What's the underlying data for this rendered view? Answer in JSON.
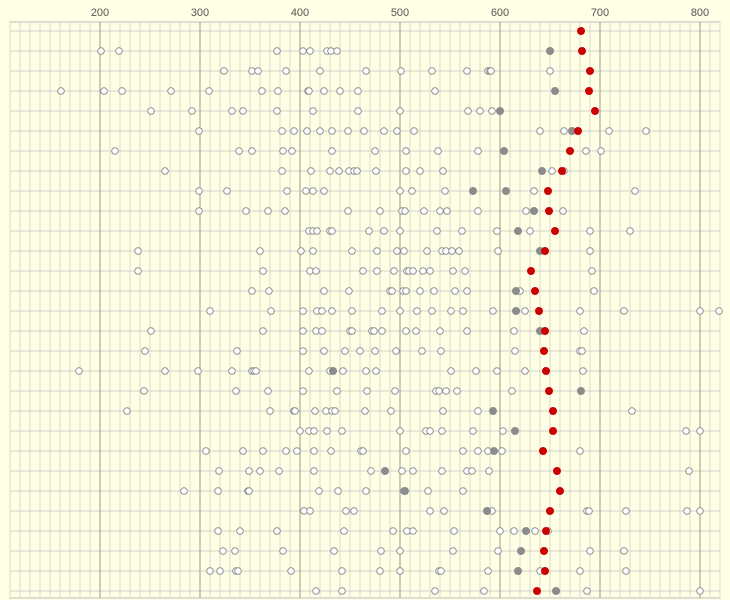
{
  "chart_data": {
    "type": "dot",
    "orientation": "horizontal",
    "xlim": [
      110,
      820
    ],
    "xticks": [
      200,
      300,
      400,
      500,
      600,
      700,
      800
    ],
    "grid": true,
    "minor_grid_step": 10,
    "categories": [
      null,
      null,
      null,
      null,
      null,
      null,
      null,
      null,
      null,
      null,
      null,
      null,
      null,
      null,
      null,
      null,
      null,
      null,
      null,
      null,
      null,
      null,
      null,
      null,
      null,
      null,
      null,
      null,
      null
    ],
    "series": [
      {
        "marker": "open",
        "color": "#888888",
        "values": [
          [],
          [
            201,
            219,
            377,
            403,
            410,
            427,
            431,
            437
          ],
          [
            324,
            352,
            358,
            386,
            420,
            466,
            501,
            532,
            567,
            588,
            590,
            591,
            650
          ],
          [
            161,
            204,
            222,
            271,
            309,
            362,
            378,
            408,
            409,
            424,
            440,
            458,
            535
          ],
          [
            251,
            292,
            332,
            343,
            377,
            413,
            458,
            500,
            568,
            580,
            592
          ],
          [
            299,
            382,
            394,
            407,
            420,
            432,
            448,
            464,
            484,
            497,
            514,
            640,
            664,
            709,
            746
          ],
          [
            215,
            339,
            352,
            383,
            392,
            432,
            475,
            506,
            538,
            578,
            686,
            701
          ],
          [
            265,
            382,
            411,
            430,
            439,
            449,
            454,
            457,
            476,
            506,
            520,
            543,
            652,
            664
          ],
          [
            299,
            327,
            387,
            406,
            413,
            424,
            500,
            512,
            545,
            606,
            634,
            735
          ],
          [
            299,
            346,
            368,
            385,
            448,
            480,
            502,
            505,
            524,
            540,
            547,
            578,
            626,
            663
          ],
          [
            409,
            413,
            417,
            430,
            432,
            469,
            484,
            500,
            537,
            562,
            597,
            630,
            690,
            730
          ],
          [
            238,
            360,
            401,
            413,
            452,
            477,
            497,
            504,
            527,
            542,
            546,
            552,
            559,
            598,
            690
          ],
          [
            238,
            363,
            410,
            416,
            463,
            477,
            494,
            507,
            509,
            513,
            523,
            530,
            553,
            565,
            692
          ],
          [
            352,
            369,
            424,
            449,
            490,
            492,
            503,
            506,
            520,
            534,
            555,
            567,
            620,
            694
          ],
          [
            310,
            371,
            403,
            417,
            422,
            432,
            452,
            482,
            500,
            517,
            532,
            551,
            563,
            593,
            625,
            680,
            724,
            800,
            819
          ],
          [
            251,
            363,
            403,
            416,
            422,
            450,
            452,
            472,
            474,
            482,
            506,
            516,
            540,
            567,
            614,
            684
          ],
          [
            245,
            337,
            403,
            424,
            445,
            460,
            475,
            496,
            522,
            541,
            615,
            680,
            682
          ],
          [
            179,
            265,
            298,
            332,
            352,
            354,
            356,
            409,
            430,
            443,
            466,
            476,
            551,
            576,
            597,
            625,
            683
          ],
          [
            244,
            336,
            368,
            403,
            437,
            467,
            495,
            536,
            539,
            546,
            557,
            612
          ],
          [
            227,
            370,
            394,
            395,
            415,
            426,
            432,
            435,
            465,
            491,
            543,
            578,
            732
          ],
          [
            400,
            409,
            414,
            427,
            442,
            500,
            526,
            530,
            542,
            573,
            603,
            786,
            800
          ],
          [
            306,
            343,
            363,
            386,
            397,
            414,
            431,
            461,
            463,
            506,
            563,
            578,
            588,
            602,
            680
          ],
          [
            319,
            349,
            360,
            379,
            414,
            471,
            502,
            513,
            542,
            567,
            572,
            589,
            789
          ],
          [
            284,
            318,
            348,
            349,
            419,
            438,
            466,
            504,
            528,
            563
          ],
          [
            404,
            410,
            446,
            454,
            530,
            544,
            592,
            687,
            689,
            726,
            787,
            800
          ],
          [
            318,
            340,
            377,
            444,
            493,
            507,
            513,
            554,
            600,
            614,
            635,
            648
          ],
          [
            323,
            335,
            383,
            434,
            481,
            500,
            553,
            598,
            690,
            724
          ],
          [
            310,
            320,
            336,
            338,
            391,
            442,
            480,
            500,
            539,
            541,
            588,
            640,
            680,
            726
          ],
          [
            416,
            442,
            535,
            584,
            656,
            687,
            800
          ]
        ]
      },
      {
        "marker": "filled",
        "color": "#8c8c8c",
        "values": [
          [],
          [
            650
          ],
          [],
          [
            655
          ],
          [
            600
          ],
          [
            672
          ],
          [
            604
          ],
          [
            642
          ],
          [
            573,
            606
          ],
          [
            634
          ],
          [
            618
          ],
          [
            640
          ],
          [],
          [
            616
          ],
          [
            616
          ],
          [
            640
          ],
          [],
          [
            433
          ],
          [
            681
          ],
          [
            593
          ],
          [
            615
          ],
          [
            594
          ],
          [
            485
          ],
          [
            505
          ],
          [
            587
          ],
          [
            626
          ],
          [
            621
          ],
          [
            618
          ],
          [
            656
          ]
        ]
      },
      {
        "marker": "filled",
        "color": "#cc0000",
        "values": [
          681,
          682,
          690,
          689,
          695,
          678,
          670,
          662,
          648,
          649,
          655,
          645,
          631,
          635,
          639,
          645,
          644,
          646,
          649,
          653,
          653,
          643,
          657,
          660,
          650,
          646,
          644,
          645,
          637
        ]
      }
    ]
  }
}
